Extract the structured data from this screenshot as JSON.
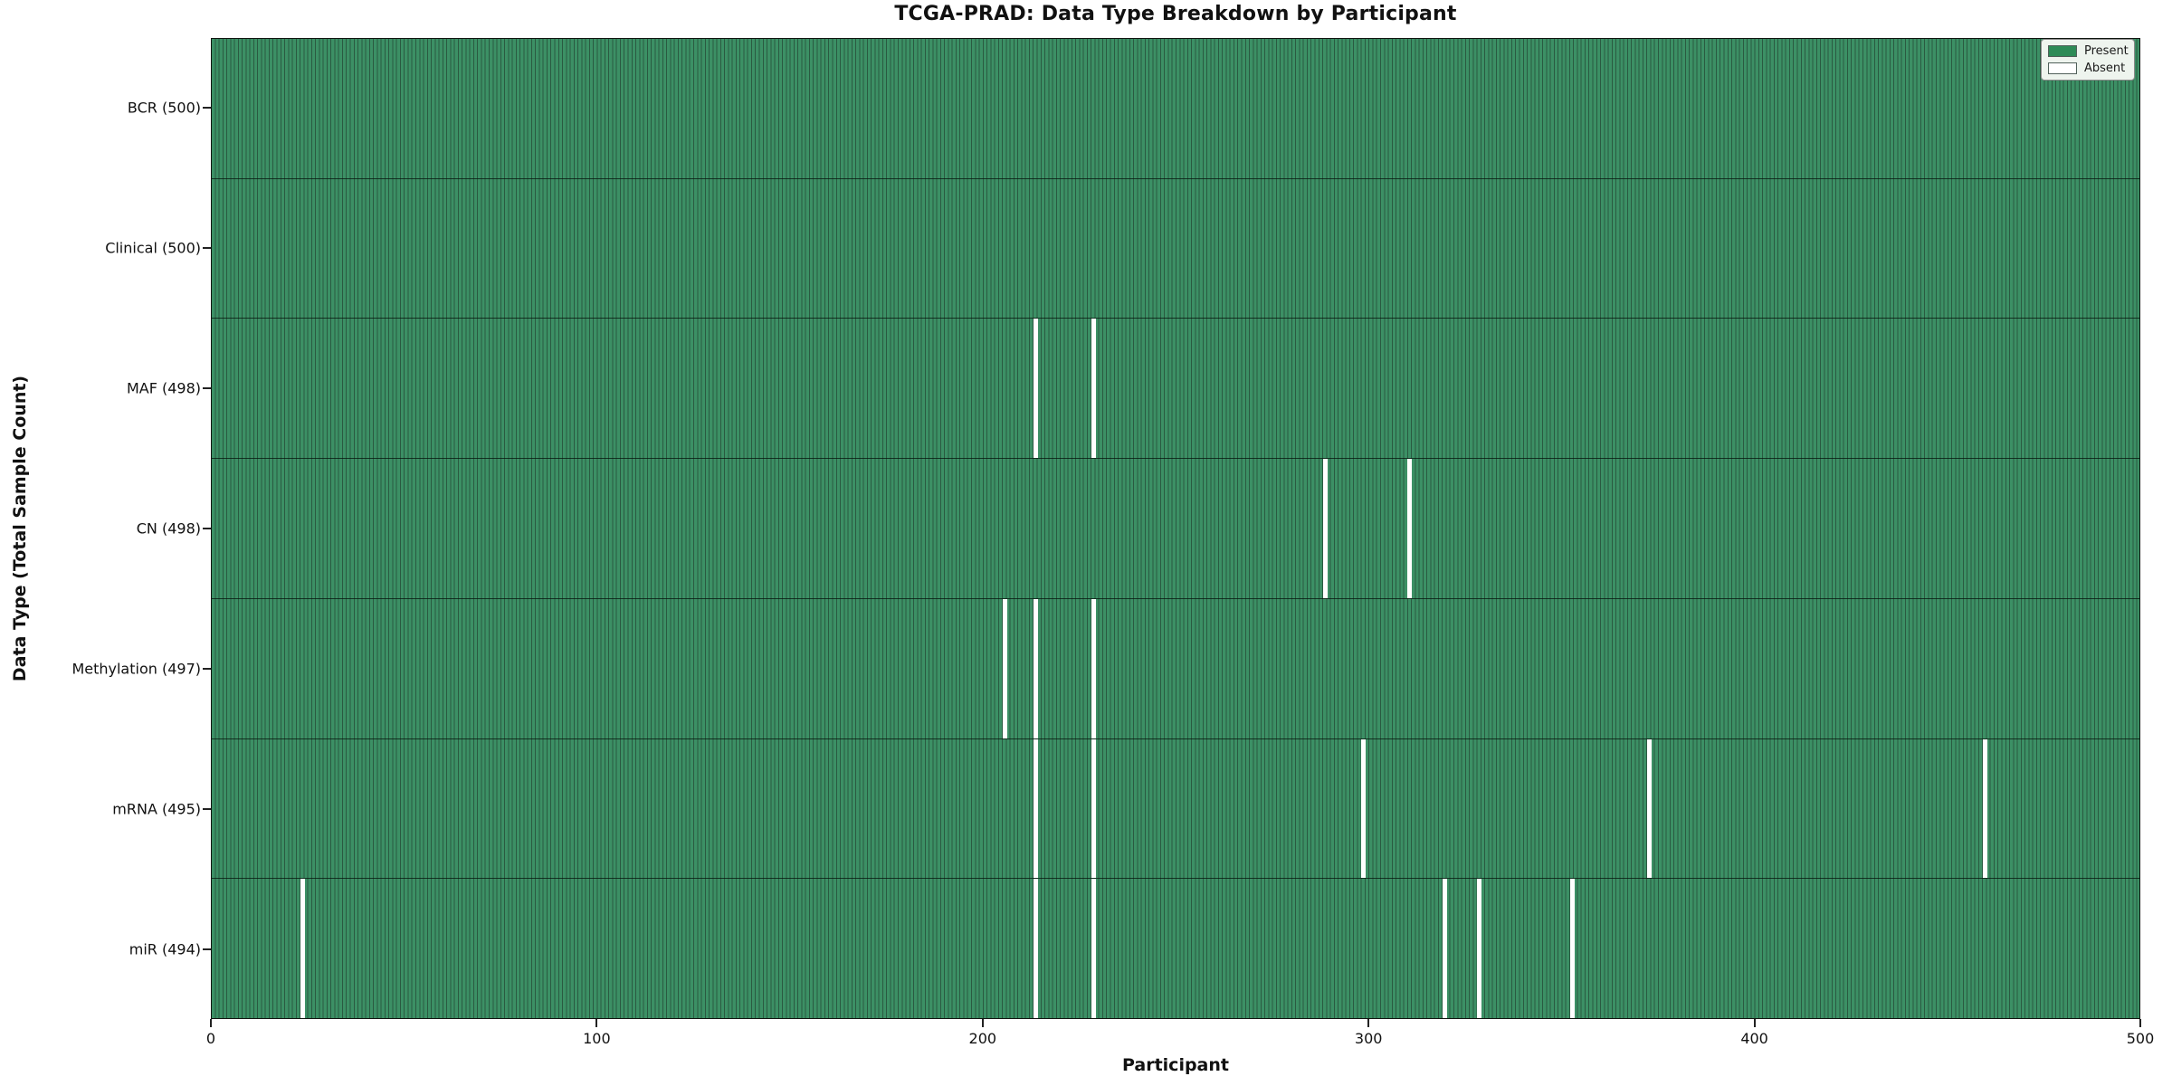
{
  "title": "TCGA-PRAD: Data Type Breakdown by Participant",
  "colors": {
    "present_fill": "#3c9065",
    "bar_edge": "#2a5a41",
    "absent_fill": "#ffffff",
    "row_divider": "#0a140e",
    "legend_bg": "#eef4ee"
  },
  "legend": {
    "present_label": "Present",
    "absent_label": "Absent"
  },
  "chart_data": {
    "type": "heatmap",
    "title": "TCGA-PRAD: Data Type Breakdown by Participant",
    "xlabel": "Participant",
    "ylabel": "Data Type (Total Sample Count)",
    "x_range": [
      0,
      500
    ],
    "x_ticks": [
      "0",
      "100",
      "200",
      "300",
      "400",
      "500"
    ],
    "n_participants": 500,
    "grid": false,
    "legend_position": "upper right",
    "legend": [
      {
        "label": "Present",
        "color": "#2e8b57"
      },
      {
        "label": "Absent",
        "color": "#ffffff"
      }
    ],
    "rows": [
      {
        "label": "BCR (500)",
        "name": "BCR",
        "total": 500,
        "absent_participants": []
      },
      {
        "label": "Clinical (500)",
        "name": "Clinical",
        "total": 500,
        "absent_participants": []
      },
      {
        "label": "MAF (498)",
        "name": "MAF",
        "total": 498,
        "absent_participants": [
          213,
          228
        ]
      },
      {
        "label": "CN (498)",
        "name": "CN",
        "total": 498,
        "absent_participants": [
          288,
          310
        ]
      },
      {
        "label": "Methylation (497)",
        "name": "Methylation",
        "total": 497,
        "absent_participants": [
          205,
          213,
          228
        ]
      },
      {
        "label": "mRNA (495)",
        "name": "mRNA",
        "total": 495,
        "absent_participants": [
          213,
          228,
          298,
          372,
          459
        ]
      },
      {
        "label": "miR (494)",
        "name": "miR",
        "total": 494,
        "absent_participants": [
          23,
          213,
          228,
          319,
          328,
          352
        ]
      }
    ]
  }
}
